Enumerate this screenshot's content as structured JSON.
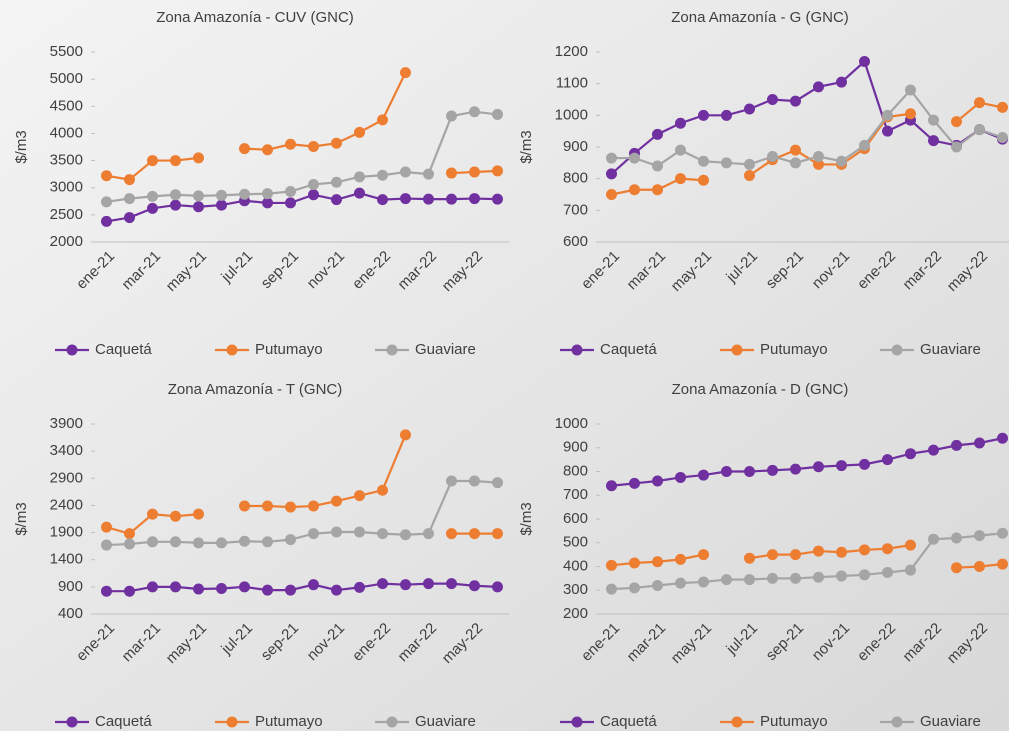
{
  "chart_data": [
    {
      "type": "line",
      "title": "Zona Amazonía  - CUV (GNC)",
      "y_label": "$/m3",
      "categories": [
        "ene-21",
        null,
        "mar-21",
        null,
        "may-21",
        null,
        "jul-21",
        null,
        "sep-21",
        null,
        "nov-21",
        null,
        "ene-22",
        null,
        "mar-22",
        null,
        "may-22",
        null
      ],
      "ylim": [
        2000,
        5500
      ],
      "yticks": [
        2000,
        2500,
        3000,
        3500,
        4000,
        4500,
        5000,
        5500
      ],
      "series": [
        {
          "name": "Caquetá",
          "color": "#7030a0",
          "values": [
            2380,
            2450,
            2620,
            2680,
            2650,
            2680,
            2760,
            2720,
            2720,
            2870,
            2780,
            2900,
            2780,
            2800,
            2790,
            2790,
            2800,
            2790
          ]
        },
        {
          "name": "Putumayo",
          "color": "#ed7d31",
          "values": [
            3220,
            3150,
            3500,
            3500,
            3550,
            null,
            3720,
            3700,
            3800,
            3760,
            3820,
            4020,
            4250,
            5120,
            null,
            3270,
            3290,
            3310
          ]
        },
        {
          "name": "Guaviare",
          "color": "#a5a5a5",
          "values": [
            2740,
            2800,
            2840,
            2870,
            2850,
            2860,
            2880,
            2890,
            2930,
            3060,
            3100,
            3200,
            3230,
            3290,
            3250,
            4320,
            4400,
            4350
          ]
        }
      ]
    },
    {
      "type": "line",
      "title": "Zona Amazonía - G (GNC)",
      "y_label": "$/m3",
      "categories": [
        "ene-21",
        null,
        "mar-21",
        null,
        "may-21",
        null,
        "jul-21",
        null,
        "sep-21",
        null,
        "nov-21",
        null,
        "ene-22",
        null,
        "mar-22",
        null,
        "may-22",
        null
      ],
      "ylim": [
        600,
        1200
      ],
      "yticks": [
        600,
        700,
        800,
        900,
        1000,
        1100,
        1200
      ],
      "series": [
        {
          "name": "Caquetá",
          "color": "#7030a0",
          "values": [
            815,
            880,
            940,
            975,
            1000,
            1000,
            1020,
            1050,
            1045,
            1090,
            1105,
            1170,
            950,
            985,
            920,
            905,
            955,
            925
          ]
        },
        {
          "name": "Putumayo",
          "color": "#ed7d31",
          "values": [
            750,
            765,
            765,
            800,
            795,
            null,
            810,
            860,
            890,
            845,
            845,
            895,
            995,
            1005,
            null,
            980,
            1040,
            1025
          ]
        },
        {
          "name": "Guaviare",
          "color": "#a5a5a5",
          "values": [
            865,
            865,
            840,
            890,
            855,
            850,
            845,
            870,
            850,
            870,
            855,
            905,
            1000,
            1080,
            985,
            900,
            955,
            930
          ]
        }
      ]
    },
    {
      "type": "line",
      "title": "Zona Amazonía - T (GNC)",
      "y_label": "$/m3",
      "categories": [
        "ene-21",
        null,
        "mar-21",
        null,
        "may-21",
        null,
        "jul-21",
        null,
        "sep-21",
        null,
        "nov-21",
        null,
        "ene-22",
        null,
        "mar-22",
        null,
        "may-22",
        null
      ],
      "ylim": [
        400,
        3900
      ],
      "yticks": [
        400,
        900,
        1400,
        1900,
        2400,
        2900,
        3400,
        3900
      ],
      "series": [
        {
          "name": "Caquetá",
          "color": "#7030a0",
          "values": [
            820,
            820,
            900,
            900,
            860,
            870,
            900,
            840,
            840,
            940,
            840,
            890,
            960,
            940,
            960,
            960,
            920,
            900
          ]
        },
        {
          "name": "Putumayo",
          "color": "#ed7d31",
          "values": [
            2000,
            1880,
            2240,
            2200,
            2240,
            null,
            2390,
            2390,
            2370,
            2390,
            2480,
            2580,
            2680,
            3700,
            null,
            1880,
            1880,
            1880
          ]
        },
        {
          "name": "Guaviare",
          "color": "#a5a5a5",
          "values": [
            1670,
            1690,
            1730,
            1730,
            1710,
            1710,
            1740,
            1730,
            1770,
            1880,
            1910,
            1910,
            1880,
            1860,
            1880,
            2850,
            2850,
            2820
          ]
        }
      ]
    },
    {
      "type": "line",
      "title": "Zona Amazonía - D (GNC)",
      "y_label": "$/m3",
      "categories": [
        "ene-21",
        null,
        "mar-21",
        null,
        "may-21",
        null,
        "jul-21",
        null,
        "sep-21",
        null,
        "nov-21",
        null,
        "ene-22",
        null,
        "mar-22",
        null,
        "may-22",
        null
      ],
      "ylim": [
        200,
        1000
      ],
      "yticks": [
        200,
        300,
        400,
        500,
        600,
        700,
        800,
        900,
        1000
      ],
      "series": [
        {
          "name": "Caquetá",
          "color": "#7030a0",
          "values": [
            740,
            750,
            760,
            775,
            785,
            800,
            800,
            805,
            810,
            820,
            825,
            830,
            850,
            875,
            890,
            910,
            920,
            940
          ]
        },
        {
          "name": "Putumayo",
          "color": "#ed7d31",
          "values": [
            405,
            415,
            420,
            430,
            450,
            null,
            435,
            450,
            450,
            465,
            460,
            470,
            475,
            490,
            null,
            395,
            400,
            410
          ]
        },
        {
          "name": "Guaviare",
          "color": "#a5a5a5",
          "values": [
            305,
            310,
            320,
            330,
            335,
            345,
            345,
            350,
            350,
            355,
            360,
            365,
            375,
            385,
            515,
            520,
            530,
            540
          ]
        }
      ]
    }
  ]
}
